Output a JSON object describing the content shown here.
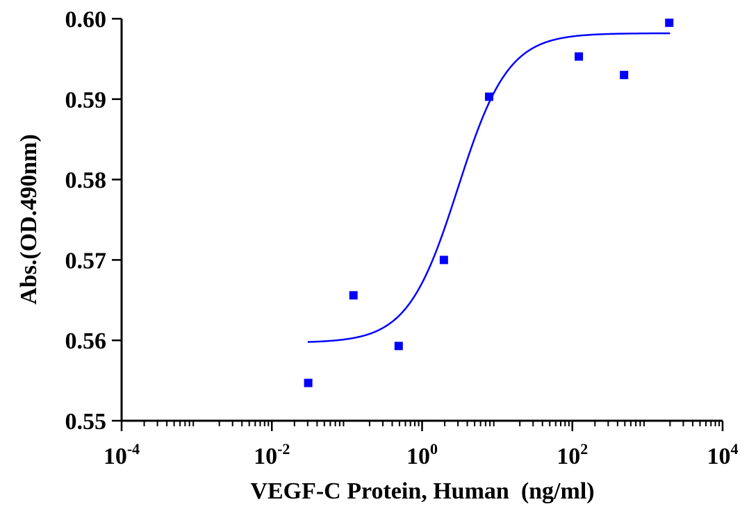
{
  "chart_data": {
    "type": "scatter",
    "xlabel": "VEGF-C Protein, Human  (ng/ml)",
    "ylabel": "Abs.(OD.490nm)",
    "xscale": "log10",
    "xlim": [
      0.0001,
      10000
    ],
    "ylim": [
      0.55,
      0.6
    ],
    "x_ticks": [
      {
        "base": "10",
        "exp": "-4"
      },
      {
        "base": "10",
        "exp": "-2"
      },
      {
        "base": "10",
        "exp": "0"
      },
      {
        "base": "10",
        "exp": "2"
      },
      {
        "base": "10",
        "exp": "4"
      }
    ],
    "y_ticks": [
      "0.55",
      "0.56",
      "0.57",
      "0.58",
      "0.59",
      "0.60"
    ],
    "grid": false,
    "legend": "none",
    "series": [
      {
        "marker": "square",
        "color": "#0000ff",
        "x": [
          0.0305,
          0.122,
          0.488,
          1.95,
          7.8,
          122,
          488,
          1950
        ],
        "y": [
          0.5547,
          0.5656,
          0.5593,
          0.57,
          0.5903,
          0.5953,
          0.593,
          0.5995
        ]
      }
    ],
    "fit": {
      "type": "4PL sigmoid",
      "color": "#0000ff",
      "bottom": 0.5597,
      "top": 0.5982,
      "ec50": 3.0,
      "hill": 1.3,
      "x_range": [
        0.03,
        2000
      ]
    }
  }
}
